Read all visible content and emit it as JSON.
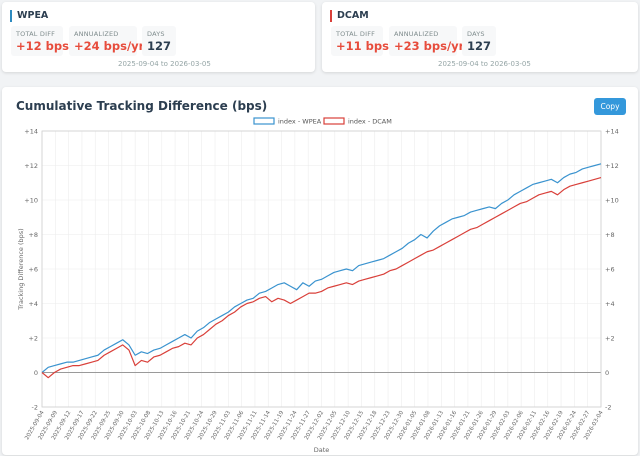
{
  "cards": [
    {
      "name": "WPEA",
      "total_diff_label": "TOTAL DIFF",
      "total_diff": "+12 bps",
      "annualized_label": "ANNUALIZED",
      "annualized": "+24 bps/yr",
      "days_label": "DAYS",
      "days": "127",
      "range": "2025-09-04 to 2026-03-05"
    },
    {
      "name": "DCAM",
      "total_diff_label": "TOTAL DIFF",
      "total_diff": "+11 bps",
      "annualized_label": "ANNUALIZED",
      "annualized": "+23 bps/yr",
      "days_label": "DAYS",
      "days": "127",
      "range": "2025-09-04 to 2026-03-05"
    }
  ],
  "chart_title": "Cumulative Tracking Difference (bps)",
  "copy_label": "Copy",
  "colors": {
    "wpea": "#3a93cf",
    "dcam": "#d9403a"
  },
  "chart_data": {
    "type": "line",
    "title": "",
    "xlabel": "Date",
    "ylabel": "Tracking Difference (bps)",
    "ylim": [
      -2,
      14
    ],
    "yticks": [
      "-2",
      "0",
      "+2",
      "+4",
      "+6",
      "+8",
      "+10",
      "+12",
      "+14"
    ],
    "grid": true,
    "legend_position": "top-center",
    "x_tick_labels": [
      "2025-09-04",
      "2025-09-09",
      "2025-09-12",
      "2025-09-17",
      "2025-09-22",
      "2025-09-25",
      "2025-09-30",
      "2025-10-03",
      "2025-10-08",
      "2025-10-13",
      "2025-10-16",
      "2025-10-21",
      "2025-10-24",
      "2025-10-29",
      "2025-11-03",
      "2025-11-06",
      "2025-11-11",
      "2025-11-14",
      "2025-11-19",
      "2025-11-24",
      "2025-11-27",
      "2025-12-02",
      "2025-12-05",
      "2025-12-10",
      "2025-12-15",
      "2025-12-18",
      "2025-12-23",
      "2025-12-30",
      "2026-01-05",
      "2026-01-08",
      "2026-01-13",
      "2026-01-16",
      "2026-01-21",
      "2026-01-26",
      "2026-01-29",
      "2026-02-03",
      "2026-02-06",
      "2026-02-11",
      "2026-02-16",
      "2026-02-19",
      "2026-02-24",
      "2026-02-27",
      "2026-03-04"
    ],
    "series": [
      {
        "name": "index - WPEA",
        "values": [
          0.0,
          0.3,
          0.4,
          0.5,
          0.6,
          0.6,
          0.7,
          0.8,
          0.9,
          1.0,
          1.3,
          1.5,
          1.7,
          1.9,
          1.6,
          1.0,
          1.2,
          1.1,
          1.3,
          1.4,
          1.6,
          1.8,
          2.0,
          2.2,
          2.0,
          2.4,
          2.6,
          2.9,
          3.1,
          3.3,
          3.5,
          3.8,
          4.0,
          4.2,
          4.3,
          4.6,
          4.7,
          4.9,
          5.1,
          5.2,
          5.0,
          4.8,
          5.2,
          5.0,
          5.3,
          5.4,
          5.6,
          5.8,
          5.9,
          6.0,
          5.9,
          6.2,
          6.3,
          6.4,
          6.5,
          6.6,
          6.8,
          7.0,
          7.2,
          7.5,
          7.7,
          8.0,
          7.8,
          8.2,
          8.5,
          8.7,
          8.9,
          9.0,
          9.1,
          9.3,
          9.4,
          9.5,
          9.6,
          9.5,
          9.8,
          10.0,
          10.3,
          10.5,
          10.7,
          10.9,
          11.0,
          11.1,
          11.2,
          11.0,
          11.3,
          11.5,
          11.6,
          11.8,
          11.9,
          12.0,
          12.1
        ],
        "color": "#3a93cf"
      },
      {
        "name": "index - DCAM",
        "values": [
          0.0,
          -0.3,
          0.0,
          0.2,
          0.3,
          0.4,
          0.4,
          0.5,
          0.6,
          0.7,
          1.0,
          1.2,
          1.4,
          1.6,
          1.3,
          0.4,
          0.7,
          0.6,
          0.9,
          1.0,
          1.2,
          1.4,
          1.5,
          1.7,
          1.6,
          2.0,
          2.2,
          2.5,
          2.8,
          3.0,
          3.3,
          3.5,
          3.8,
          4.0,
          4.1,
          4.3,
          4.4,
          4.1,
          4.3,
          4.2,
          4.0,
          4.2,
          4.4,
          4.6,
          4.6,
          4.7,
          4.9,
          5.0,
          5.1,
          5.2,
          5.1,
          5.3,
          5.4,
          5.5,
          5.6,
          5.7,
          5.9,
          6.0,
          6.2,
          6.4,
          6.6,
          6.8,
          7.0,
          7.1,
          7.3,
          7.5,
          7.7,
          7.9,
          8.1,
          8.3,
          8.4,
          8.6,
          8.8,
          9.0,
          9.2,
          9.4,
          9.6,
          9.8,
          9.9,
          10.1,
          10.3,
          10.4,
          10.5,
          10.3,
          10.6,
          10.8,
          10.9,
          11.0,
          11.1,
          11.2,
          11.3
        ],
        "color": "#d9403a"
      }
    ]
  }
}
